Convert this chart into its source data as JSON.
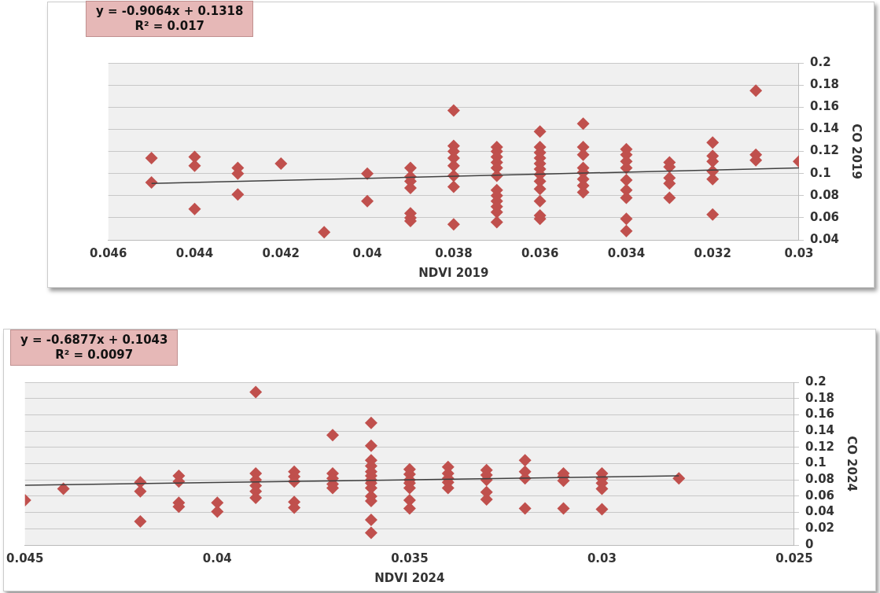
{
  "chart_data": [
    {
      "type": "scatter",
      "xlabel": "NDVI 2019",
      "ylabel": "CO 2019",
      "annotations": [
        "y = -0.9064x + 0.1318",
        "R² = 0.017"
      ],
      "xlim": [
        0.046,
        0.03
      ],
      "xticks": [
        0.046,
        0.044,
        0.042,
        0.04,
        0.038,
        0.036,
        0.034,
        0.032,
        0.03
      ],
      "ylim": [
        0.04,
        0.2
      ],
      "yticks": [
        0.04,
        0.06,
        0.08,
        0.1,
        0.12,
        0.14,
        0.16,
        0.18,
        0.2
      ],
      "grid": "y",
      "legend": false,
      "marker": "diamond",
      "series": [
        {
          "color": "#c0504d",
          "x": [
            0.045,
            0.045,
            0.044,
            0.044,
            0.044,
            0.043,
            0.043,
            0.043,
            0.042,
            0.041,
            0.04,
            0.04,
            0.039,
            0.039,
            0.039,
            0.039,
            0.039,
            0.039,
            0.039,
            0.038,
            0.038,
            0.038,
            0.038,
            0.038,
            0.038,
            0.038,
            0.038,
            0.037,
            0.037,
            0.037,
            0.037,
            0.037,
            0.037,
            0.037,
            0.037,
            0.037,
            0.037,
            0.037,
            0.037,
            0.036,
            0.036,
            0.036,
            0.036,
            0.036,
            0.036,
            0.036,
            0.036,
            0.036,
            0.036,
            0.036,
            0.036,
            0.035,
            0.035,
            0.035,
            0.035,
            0.035,
            0.035,
            0.035,
            0.035,
            0.034,
            0.034,
            0.034,
            0.034,
            0.034,
            0.034,
            0.034,
            0.034,
            0.034,
            0.033,
            0.033,
            0.033,
            0.033,
            0.033,
            0.032,
            0.032,
            0.032,
            0.032,
            0.032,
            0.032,
            0.031,
            0.031,
            0.031,
            0.03
          ],
          "values": [
            0.114,
            0.092,
            0.115,
            0.107,
            0.068,
            0.105,
            0.1,
            0.081,
            0.109,
            0.047,
            0.1,
            0.075,
            0.105,
            0.097,
            0.093,
            0.087,
            0.064,
            0.06,
            0.057,
            0.157,
            0.125,
            0.12,
            0.114,
            0.107,
            0.098,
            0.088,
            0.054,
            0.124,
            0.12,
            0.115,
            0.11,
            0.105,
            0.098,
            0.085,
            0.08,
            0.075,
            0.07,
            0.065,
            0.056,
            0.138,
            0.124,
            0.119,
            0.114,
            0.109,
            0.104,
            0.099,
            0.093,
            0.086,
            0.075,
            0.062,
            0.059,
            0.145,
            0.124,
            0.117,
            0.105,
            0.101,
            0.095,
            0.089,
            0.083,
            0.122,
            0.117,
            0.111,
            0.105,
            0.094,
            0.085,
            0.078,
            0.059,
            0.048,
            0.11,
            0.106,
            0.096,
            0.091,
            0.078,
            0.128,
            0.116,
            0.111,
            0.102,
            0.095,
            0.063,
            0.175,
            0.117,
            0.112,
            0.111
          ]
        },
        {
          "type": "line",
          "color": "#404040",
          "marker": "none",
          "x": [
            0.045,
            0.03
          ],
          "values": [
            0.091,
            0.105
          ]
        }
      ]
    },
    {
      "type": "scatter",
      "xlabel": "NDVI 2024",
      "ylabel": "CO 2024",
      "annotations": [
        "y = -0.6877x + 0.1043",
        "R² = 0.0097"
      ],
      "xlim": [
        0.045,
        0.025
      ],
      "xticks": [
        0.045,
        0.04,
        0.035,
        0.03,
        0.025
      ],
      "ylim": [
        0,
        0.2
      ],
      "yticks": [
        0,
        0.02,
        0.04,
        0.06,
        0.08,
        0.1,
        0.12,
        0.14,
        0.16,
        0.18,
        0.2
      ],
      "grid": "y",
      "legend": false,
      "marker": "diamond",
      "series": [
        {
          "color": "#c0504d",
          "x": [
            0.045,
            0.044,
            0.042,
            0.042,
            0.042,
            0.041,
            0.041,
            0.041,
            0.041,
            0.04,
            0.04,
            0.039,
            0.039,
            0.039,
            0.039,
            0.039,
            0.039,
            0.038,
            0.038,
            0.038,
            0.038,
            0.038,
            0.037,
            0.037,
            0.037,
            0.037,
            0.037,
            0.036,
            0.036,
            0.036,
            0.036,
            0.036,
            0.036,
            0.036,
            0.036,
            0.036,
            0.036,
            0.036,
            0.036,
            0.036,
            0.035,
            0.035,
            0.035,
            0.035,
            0.035,
            0.035,
            0.035,
            0.034,
            0.034,
            0.034,
            0.034,
            0.034,
            0.033,
            0.033,
            0.033,
            0.033,
            0.033,
            0.032,
            0.032,
            0.032,
            0.032,
            0.031,
            0.031,
            0.031,
            0.031,
            0.03,
            0.03,
            0.03,
            0.03,
            0.03,
            0.028
          ],
          "values": [
            0.055,
            0.069,
            0.077,
            0.066,
            0.029,
            0.085,
            0.078,
            0.052,
            0.047,
            0.052,
            0.041,
            0.188,
            0.088,
            0.08,
            0.073,
            0.066,
            0.058,
            0.09,
            0.084,
            0.078,
            0.053,
            0.046,
            0.135,
            0.088,
            0.082,
            0.075,
            0.07,
            0.15,
            0.122,
            0.104,
            0.097,
            0.09,
            0.085,
            0.08,
            0.076,
            0.07,
            0.06,
            0.054,
            0.031,
            0.015,
            0.093,
            0.087,
            0.08,
            0.076,
            0.07,
            0.055,
            0.045,
            0.096,
            0.088,
            0.082,
            0.077,
            0.07,
            0.092,
            0.086,
            0.08,
            0.065,
            0.056,
            0.104,
            0.09,
            0.082,
            0.045,
            0.088,
            0.084,
            0.079,
            0.045,
            0.088,
            0.082,
            0.076,
            0.069,
            0.044,
            0.082
          ]
        },
        {
          "type": "line",
          "color": "#404040",
          "marker": "none",
          "x": [
            0.045,
            0.028
          ],
          "values": [
            0.0734,
            0.085
          ]
        }
      ]
    }
  ]
}
